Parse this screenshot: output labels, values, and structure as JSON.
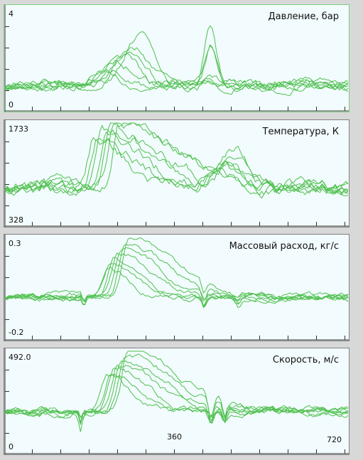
{
  "colors": {
    "background": "#d8d8d8",
    "panel": "#f2fbfd",
    "trace": "#4fc04f",
    "axis": "#303030"
  },
  "chart_data": [
    {
      "type": "line",
      "title": "Давление, бар",
      "ymax_label": "4",
      "ymin_label": "0",
      "ylim": [
        0,
        4
      ],
      "xlim": [
        0,
        720
      ]
    },
    {
      "type": "line",
      "title": "Температура, К",
      "ymax_label": "1733",
      "ymin_label": "328",
      "ylim": [
        328,
        1733
      ],
      "xlim": [
        0,
        720
      ]
    },
    {
      "type": "line",
      "title": "Массовый расход, кг/с",
      "ymax_label": "0.3",
      "ymin_label": "-0.2",
      "ylim": [
        -0.2,
        0.3
      ],
      "xlim": [
        0,
        720
      ]
    },
    {
      "type": "line",
      "title": "Скорость, м/с",
      "ymax_label": "492.0",
      "ymin_label": "0",
      "ylim": [
        0,
        492
      ],
      "xlim": [
        0,
        720
      ],
      "x_tick_labels": [
        "360",
        "720"
      ]
    }
  ]
}
